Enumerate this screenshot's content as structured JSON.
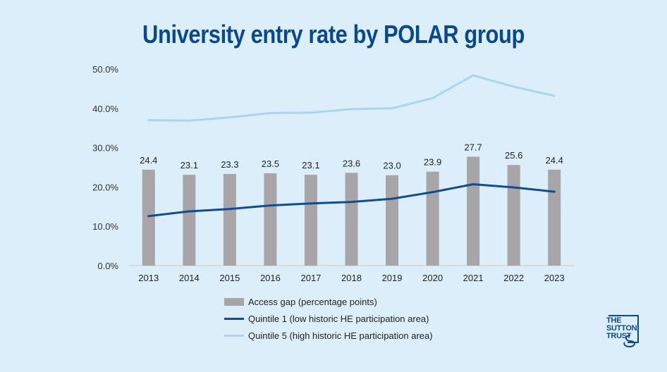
{
  "title": "University entry rate by POLAR group",
  "chart_data": {
    "type": "bar",
    "title": "University entry rate by POLAR group",
    "categories": [
      "2013",
      "2014",
      "2015",
      "2016",
      "2017",
      "2018",
      "2019",
      "2020",
      "2021",
      "2022",
      "2023"
    ],
    "series": [
      {
        "name": "Access gap (percentage points)",
        "type": "bar",
        "values": [
          24.4,
          23.1,
          23.3,
          23.5,
          23.1,
          23.6,
          23.0,
          23.9,
          27.7,
          25.6,
          24.4
        ],
        "labels": [
          "24.4",
          "23.1",
          "23.3",
          "23.5",
          "23.1",
          "23.6",
          "23.0",
          "23.9",
          "27.7",
          "25.6",
          "24.4"
        ],
        "color": "#a7a5a7"
      },
      {
        "name": "Quintile 1 (low historic HE participation area)",
        "type": "line",
        "values": [
          12.6,
          13.8,
          14.4,
          15.3,
          15.8,
          16.2,
          17.0,
          18.7,
          20.7,
          19.9,
          18.8
        ],
        "color": "#0e4d92"
      },
      {
        "name": "Quintile 5 (high historic HE participation area)",
        "type": "line",
        "values": [
          37.0,
          36.9,
          37.7,
          38.8,
          38.9,
          39.8,
          40.0,
          42.6,
          48.4,
          45.5,
          43.2
        ],
        "color": "#a9d6ef"
      }
    ],
    "ylim": [
      0,
      50
    ],
    "yticks": [
      "0.0%",
      "10.0%",
      "20.0%",
      "30.0%",
      "40.0%",
      "50.0%"
    ],
    "ytick_values": [
      0,
      10,
      20,
      30,
      40,
      50
    ],
    "grid": false,
    "legend_position": "bottom"
  },
  "legend": [
    "Access gap (percentage points)",
    "Quintile 1 (low historic HE participation area)",
    "Quintile 5 (high historic HE participation area)"
  ],
  "logo": {
    "lines": [
      "THE",
      "SUTTON",
      "TRUST"
    ]
  },
  "colors": {
    "background": "#dceef9",
    "title": "#0a4a8c",
    "bar": "#a7a5a7",
    "quintile1": "#0e4d92",
    "quintile5": "#a9d6ef"
  }
}
